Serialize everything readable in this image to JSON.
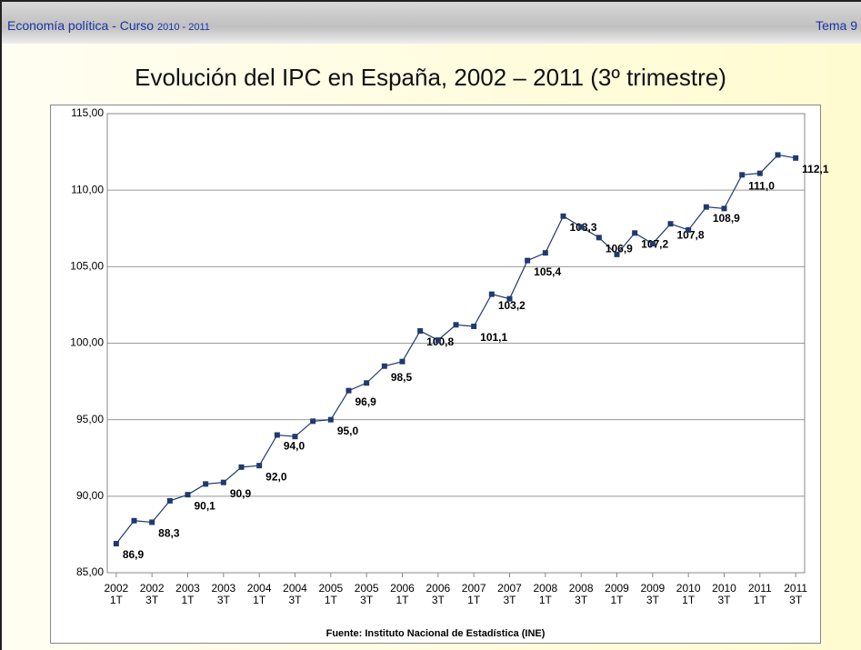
{
  "header": {
    "course": "Economía política - Curso ",
    "years": "2010 - 2011",
    "topic": "Tema 9"
  },
  "chart_data": {
    "type": "line",
    "title": "Evolución del IPC en España, 2002 – 2011 (3º trimestre)",
    "source": "Fuente: Instituto Nacional de Estadística (INE)",
    "categories": [
      "2002 1T",
      null,
      "2002 3T",
      null,
      "2003 1T",
      null,
      "2003 3T",
      null,
      "2004 1T",
      null,
      "2004 3T",
      null,
      "2005 1T",
      null,
      "2005 3T",
      null,
      "2006 1T",
      null,
      "2006 3T",
      null,
      "2007 1T",
      null,
      "2007 3T",
      null,
      "2008 1T",
      null,
      "2008 3T",
      null,
      "2009 1T",
      null,
      "2009 3T",
      null,
      "2010 1T",
      null,
      "2010 3T",
      null,
      "2011 1T",
      null,
      "2011 3T"
    ],
    "series": [
      {
        "name": "IPC",
        "color": "#1f3a6e",
        "values": [
          86.9,
          88.4,
          88.3,
          89.7,
          90.1,
          90.8,
          90.9,
          91.9,
          92.0,
          94.0,
          93.9,
          94.9,
          95.0,
          96.9,
          97.4,
          98.5,
          98.8,
          100.8,
          100.2,
          101.2,
          101.1,
          103.2,
          102.9,
          105.4,
          105.9,
          108.3,
          107.6,
          106.9,
          105.8,
          107.2,
          106.5,
          107.8,
          107.4,
          108.9,
          108.8,
          111.0,
          111.1,
          112.3,
          112.1
        ],
        "value_labels": [
          "86,9",
          null,
          "88,3",
          null,
          "90,1",
          null,
          "90,9",
          null,
          "92,0",
          "94,0",
          null,
          null,
          "95,0",
          "96,9",
          null,
          "98,5",
          null,
          "100,8",
          null,
          null,
          "101,1",
          "103,2",
          null,
          "105,4",
          null,
          "108,3",
          null,
          "106,9",
          null,
          "107,2",
          null,
          "107,8",
          null,
          "108,9",
          null,
          "111,0",
          null,
          null,
          "112,1"
        ]
      }
    ],
    "ylim": [
      85,
      115
    ],
    "yticks": [
      {
        "value": 85,
        "label": "85,00"
      },
      {
        "value": 90,
        "label": "90,00"
      },
      {
        "value": 95,
        "label": "95,00"
      },
      {
        "value": 100,
        "label": "100,00"
      },
      {
        "value": 105,
        "label": "105,00"
      },
      {
        "value": 110,
        "label": "110,00"
      },
      {
        "value": 115,
        "label": "115,00"
      }
    ],
    "grid": true
  }
}
